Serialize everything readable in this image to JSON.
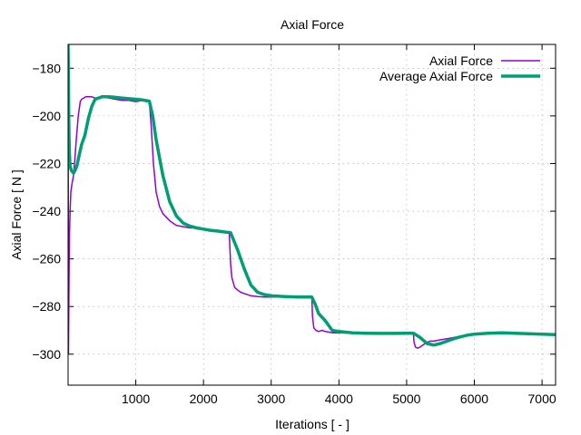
{
  "chart_data": {
    "type": "line",
    "title": "Axial Force",
    "xlabel": "Iterations [ - ]",
    "ylabel": "Axial Force [ N ]",
    "xlim": [
      0,
      7200
    ],
    "ylim": [
      -313,
      -170
    ],
    "x_ticks": [
      1000,
      2000,
      3000,
      4000,
      5000,
      6000,
      7000
    ],
    "y_ticks": [
      -180,
      -200,
      -220,
      -240,
      -260,
      -280,
      -300
    ],
    "grid": true,
    "legend_position": "top-right",
    "series": [
      {
        "name": "Axial Force",
        "color": "#9400d3",
        "line_width": 1.5,
        "x": [
          0,
          5,
          10,
          15,
          20,
          30,
          40,
          60,
          80,
          100,
          120,
          150,
          180,
          200,
          230,
          260,
          300,
          350,
          400,
          500,
          600,
          700,
          800,
          900,
          1000,
          1100,
          1150,
          1180,
          1200,
          1230,
          1260,
          1300,
          1350,
          1400,
          1500,
          1600,
          1700,
          1800,
          1900,
          2000,
          2100,
          2200,
          2300,
          2380,
          2400,
          2420,
          2440,
          2460,
          2500,
          2550,
          2600,
          2650,
          2700,
          2800,
          2900,
          3000,
          3200,
          3400,
          3550,
          3600,
          3610,
          3630,
          3660,
          3700,
          3750,
          3800,
          3850,
          3900,
          4000,
          4200,
          4400,
          4600,
          4800,
          5000,
          5100,
          5110,
          5130,
          5160,
          5200,
          5250,
          5300,
          5350,
          5400,
          5500,
          5600,
          5700,
          5800,
          5900,
          6000,
          6100,
          6200,
          6300,
          6400,
          6500,
          6600,
          6700,
          6800,
          6900,
          7000,
          7100,
          7200
        ],
        "y": [
          -170,
          -300,
          -285,
          -265,
          -250,
          -240,
          -232,
          -228,
          -225,
          -218,
          -210,
          -200,
          -194,
          -193,
          -192.5,
          -192,
          -192,
          -192,
          -192.5,
          -192,
          -192.5,
          -193,
          -193.5,
          -193.5,
          -194,
          -193.5,
          -194,
          -193.5,
          -194,
          -205,
          -220,
          -232,
          -238,
          -241,
          -244,
          -246,
          -246.5,
          -247,
          -247,
          -247.5,
          -248,
          -248,
          -248.5,
          -249,
          -262,
          -268,
          -270,
          -272,
          -273,
          -274,
          -274.5,
          -275,
          -275.5,
          -275.8,
          -276,
          -276,
          -276,
          -276,
          -276,
          -276,
          -284,
          -289,
          -290,
          -290.5,
          -290,
          -290.5,
          -290.7,
          -291,
          -291,
          -291.2,
          -291.3,
          -291.2,
          -291.4,
          -291.3,
          -291.5,
          -295,
          -297,
          -297.5,
          -297,
          -296,
          -295,
          -294.5,
          -294.5,
          -294,
          -293.5,
          -293,
          -292.5,
          -292,
          -291.8,
          -291.6,
          -291.3,
          -291,
          -291.2,
          -291.3,
          -291.4,
          -291.5,
          -291.5,
          -291.6,
          -291.6,
          -291.7,
          -291.7
        ]
      },
      {
        "name": "Average Axial Force",
        "color": "#009e73",
        "line_width": 3.5,
        "x": [
          0,
          5,
          10,
          15,
          20,
          25,
          30,
          50,
          80,
          100,
          130,
          160,
          200,
          250,
          300,
          350,
          400,
          450,
          500,
          600,
          700,
          800,
          900,
          1000,
          1100,
          1200,
          1250,
          1300,
          1400,
          1500,
          1600,
          1700,
          1800,
          1900,
          2000,
          2100,
          2200,
          2300,
          2400,
          2500,
          2600,
          2700,
          2800,
          2900,
          3000,
          3200,
          3400,
          3600,
          3650,
          3700,
          3800,
          3900,
          4000,
          4200,
          4400,
          4600,
          4800,
          5000,
          5100,
          5200,
          5300,
          5400,
          5500,
          5600,
          5700,
          5800,
          5900,
          6000,
          6200,
          6400,
          6600,
          6800,
          7000,
          7200
        ],
        "y": [
          -170,
          -185,
          -200,
          -210,
          -216,
          -219,
          -221,
          -223,
          -224,
          -223,
          -221,
          -217,
          -212,
          -208,
          -201,
          -196,
          -193,
          -192.5,
          -192,
          -192,
          -192.2,
          -192.5,
          -192.8,
          -193,
          -193.3,
          -193.8,
          -200,
          -210,
          -225,
          -236,
          -242,
          -245,
          -246.3,
          -247,
          -247.5,
          -248,
          -248.3,
          -248.7,
          -249,
          -256,
          -264,
          -271,
          -274,
          -275,
          -275.5,
          -275.8,
          -276,
          -276,
          -279,
          -283,
          -286,
          -290,
          -290.5,
          -291,
          -291.2,
          -291.3,
          -291.3,
          -291.2,
          -291.2,
          -293,
          -295.5,
          -296.2,
          -295.5,
          -294.5,
          -293.5,
          -292.7,
          -292,
          -291.6,
          -291.2,
          -291,
          -291.2,
          -291.4,
          -291.6,
          -291.8
        ]
      }
    ]
  }
}
